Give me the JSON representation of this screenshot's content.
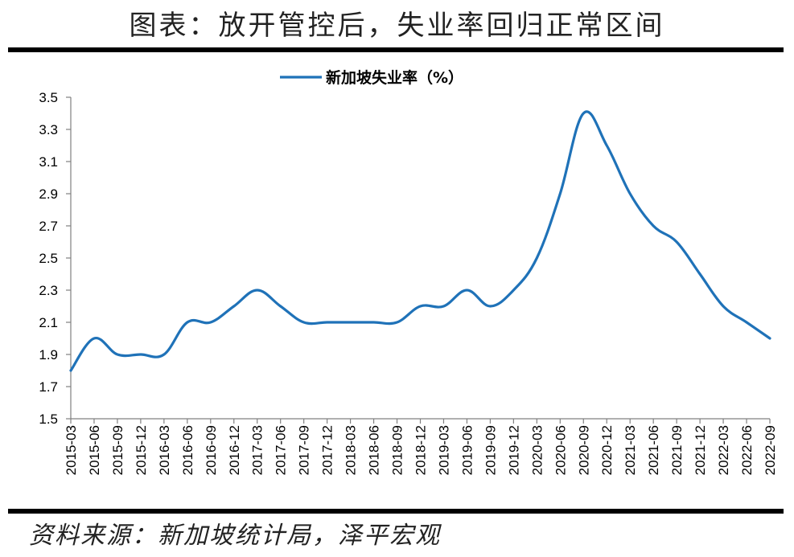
{
  "title": "图表：放开管控后，失业率回归正常区间",
  "source": "资料来源：新加坡统计局，泽平宏观",
  "colors": {
    "series": "#1F72B8",
    "axis": "#808080",
    "rule": "#000000"
  },
  "chart_data": {
    "type": "line",
    "legend": {
      "position": "top-center",
      "entries": [
        "新加坡失业率（%）"
      ]
    },
    "grid": false,
    "ylim": [
      1.5,
      3.5
    ],
    "yticks": [
      "1.5",
      "1.7",
      "1.9",
      "2.1",
      "2.3",
      "2.5",
      "2.7",
      "2.9",
      "3.1",
      "3.3",
      "3.5"
    ],
    "x": [
      "2015-03",
      "2015-06",
      "2015-09",
      "2015-12",
      "2016-03",
      "2016-06",
      "2016-09",
      "2016-12",
      "2017-03",
      "2017-06",
      "2017-09",
      "2017-12",
      "2018-03",
      "2018-06",
      "2018-09",
      "2018-12",
      "2019-03",
      "2019-06",
      "2019-09",
      "2019-12",
      "2020-03",
      "2020-06",
      "2020-09",
      "2020-12",
      "2021-03",
      "2021-06",
      "2021-09",
      "2021-12",
      "2022-03",
      "2022-06",
      "2022-09"
    ],
    "series": [
      {
        "name": "新加坡失业率（%）",
        "values": [
          1.8,
          2.0,
          1.9,
          1.9,
          1.9,
          2.1,
          2.1,
          2.2,
          2.3,
          2.2,
          2.1,
          2.1,
          2.1,
          2.1,
          2.1,
          2.2,
          2.2,
          2.3,
          2.2,
          2.3,
          2.5,
          2.9,
          3.4,
          3.2,
          2.9,
          2.7,
          2.6,
          2.4,
          2.2,
          2.1,
          2.0
        ]
      }
    ]
  }
}
